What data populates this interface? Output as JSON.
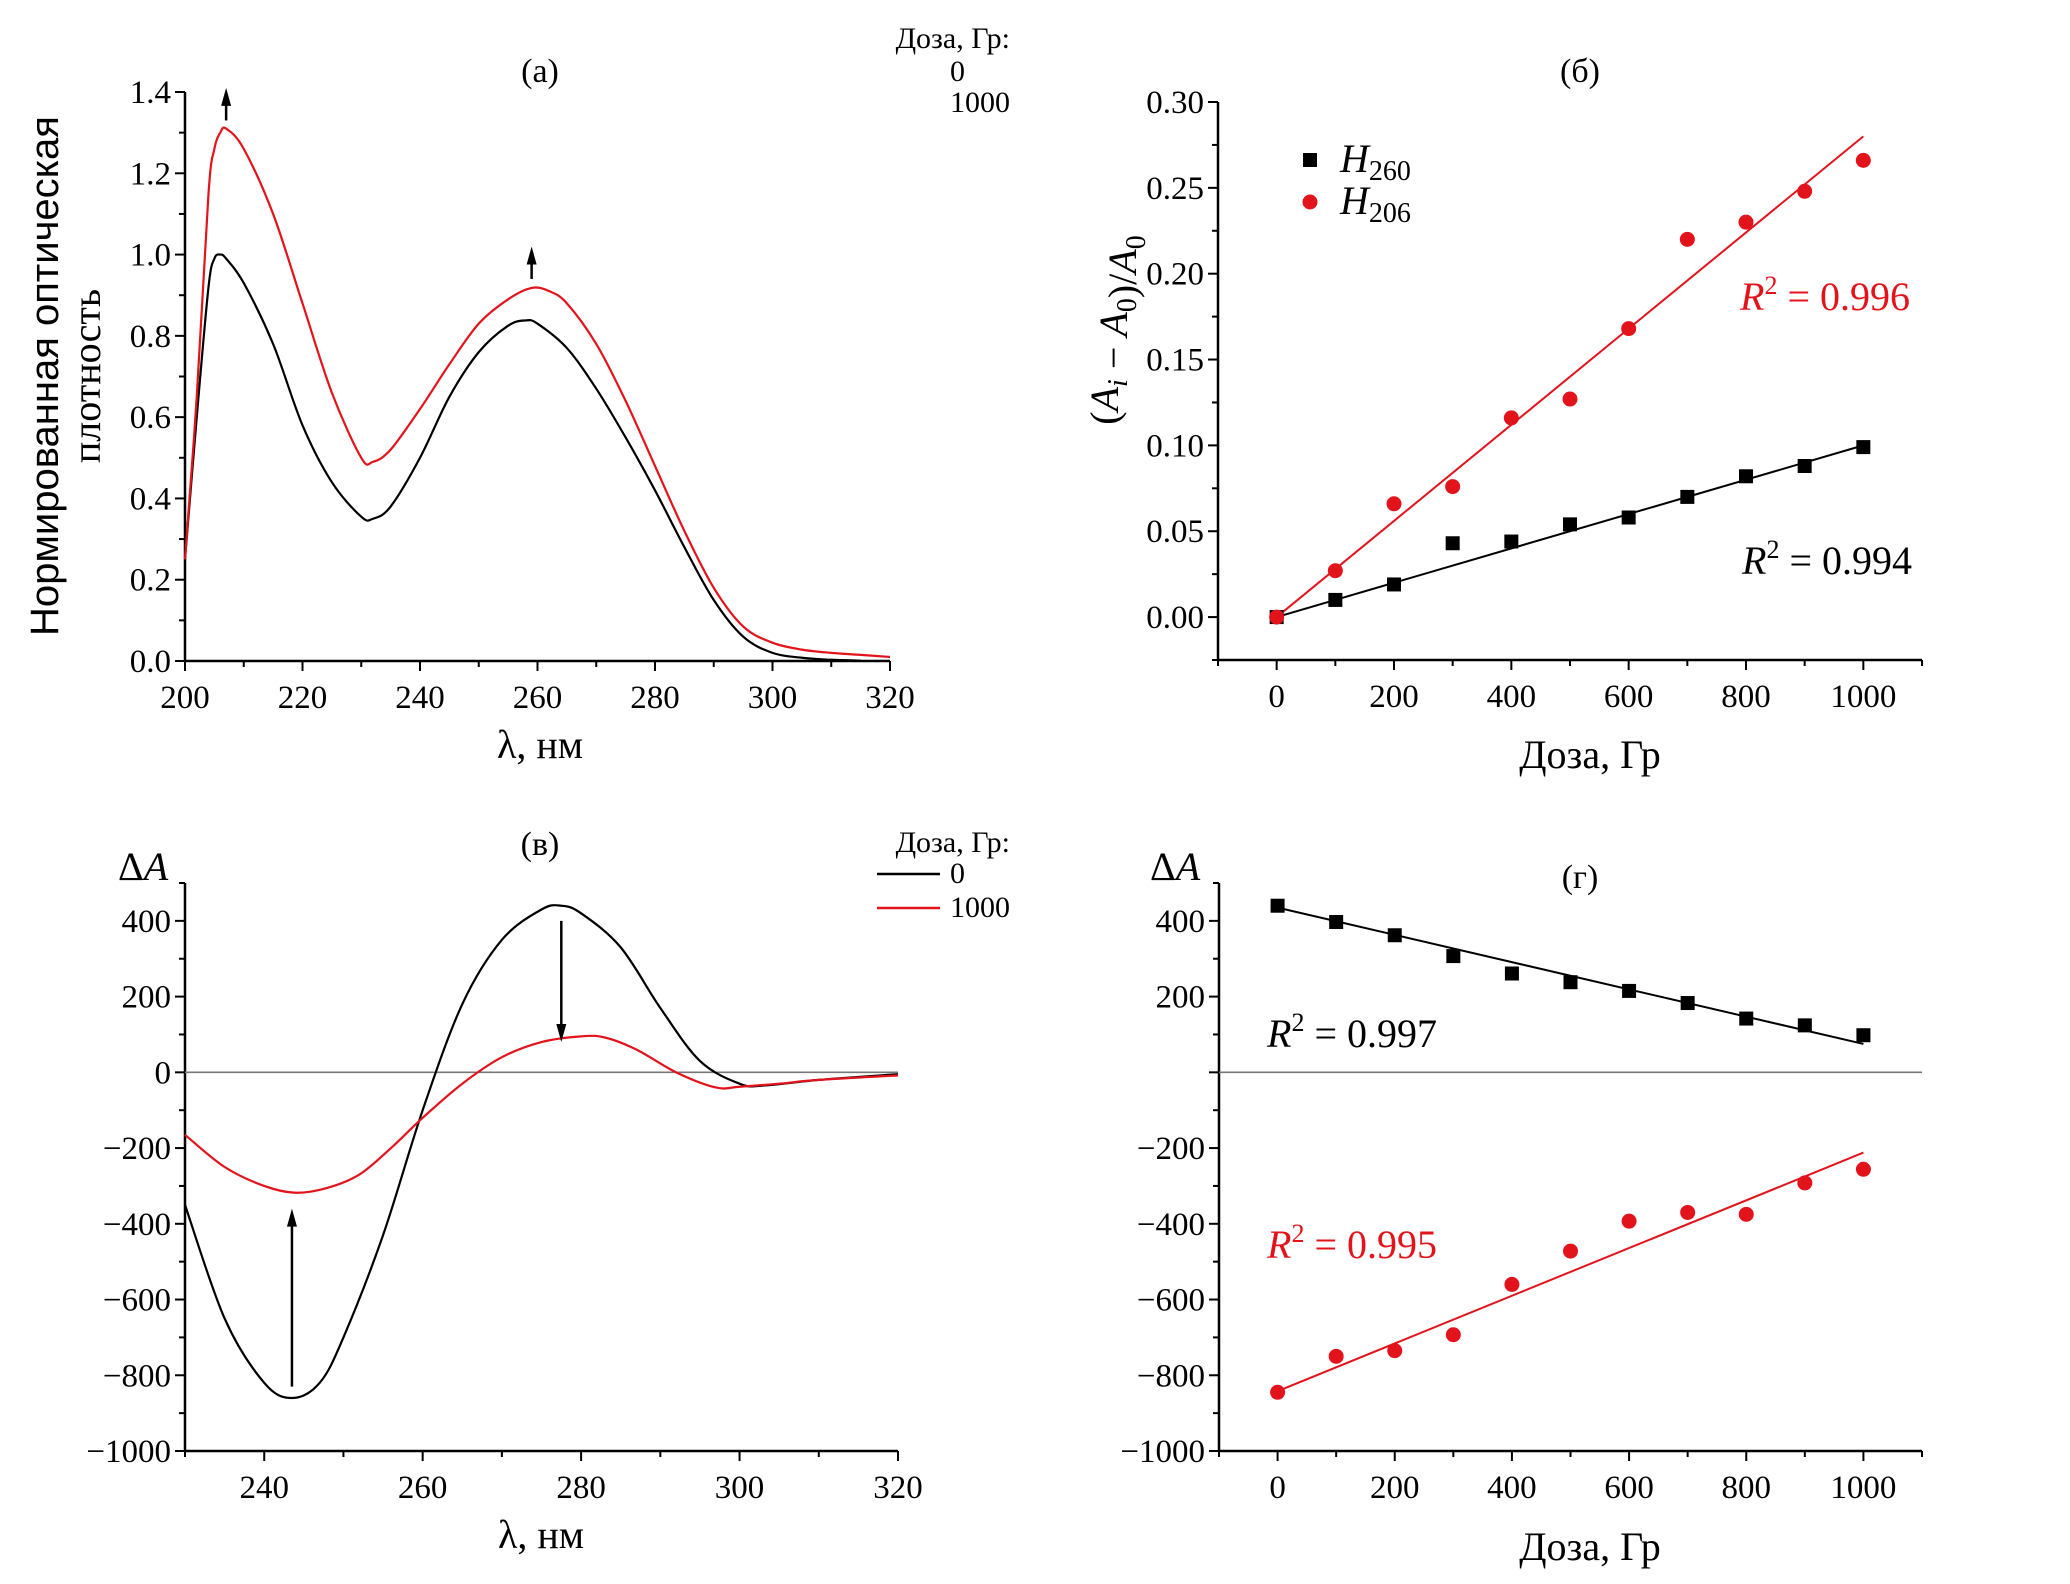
{
  "colors": {
    "dose0": "#000000",
    "dose1000": "#e3131b",
    "zero_line": "#777777"
  },
  "chart_data": [
    {
      "id": "a",
      "type": "line",
      "title": "(а)",
      "xlabel": "λ, нм",
      "ylabel_lines": [
        "Нормированная оптическая",
        "плотность"
      ],
      "xlim": [
        200,
        320
      ],
      "ylim": [
        0.0,
        1.4
      ],
      "xticks": [
        200,
        220,
        240,
        260,
        280,
        300,
        320
      ],
      "xtick_labels": [
        "200",
        "220",
        "240",
        "260",
        "280",
        "300",
        "320"
      ],
      "yticks": [
        0.0,
        0.2,
        0.4,
        0.6,
        0.8,
        1.0,
        1.2,
        1.4
      ],
      "ytick_labels": [
        "0.0",
        "0.2",
        "0.4",
        "0.6",
        "0.8",
        "1.0",
        "1.2",
        "1.4"
      ],
      "legend": {
        "title": "Доза, Гр:",
        "entries": [
          "0",
          "1000"
        ],
        "placement": "top-right",
        "has_line_samples": false
      },
      "annotations": [
        {
          "type": "arrow-up",
          "x": 207,
          "y_from": 1.33,
          "y_to": 1.41
        },
        {
          "type": "arrow-up",
          "x": 259,
          "y_from": 0.94,
          "y_to": 1.02
        }
      ],
      "series": [
        {
          "name": "0",
          "color_key": "dose0",
          "x": [
            200,
            202,
            204,
            205,
            206,
            207,
            210,
            215,
            220,
            225,
            230,
            232,
            235,
            240,
            245,
            250,
            255,
            258,
            260,
            265,
            270,
            275,
            280,
            285,
            290,
            295,
            300,
            305,
            310,
            315
          ],
          "y": [
            0.25,
            0.6,
            0.92,
            0.99,
            1.0,
            0.99,
            0.93,
            0.78,
            0.58,
            0.44,
            0.355,
            0.35,
            0.38,
            0.5,
            0.65,
            0.76,
            0.825,
            0.838,
            0.83,
            0.77,
            0.67,
            0.55,
            0.42,
            0.28,
            0.15,
            0.06,
            0.02,
            0.008,
            0.003,
            0.001
          ]
        },
        {
          "name": "1000",
          "color_key": "dose1000",
          "x": [
            200,
            202,
            204,
            205,
            206,
            207,
            210,
            215,
            220,
            225,
            230,
            232,
            235,
            240,
            245,
            250,
            255,
            259,
            262,
            265,
            270,
            275,
            280,
            285,
            290,
            295,
            300,
            305,
            310,
            315,
            320
          ],
          "y": [
            0.25,
            0.65,
            1.15,
            1.26,
            1.3,
            1.31,
            1.26,
            1.1,
            0.88,
            0.66,
            0.5,
            0.49,
            0.52,
            0.62,
            0.73,
            0.83,
            0.89,
            0.918,
            0.91,
            0.88,
            0.78,
            0.64,
            0.48,
            0.32,
            0.18,
            0.085,
            0.045,
            0.028,
            0.02,
            0.015,
            0.01
          ]
        }
      ]
    },
    {
      "id": "b",
      "type": "scatter",
      "title": "(б)",
      "xlabel": "Доза, Гр",
      "ylabel": "(A_i − A_0)/A_0",
      "xlim": [
        -100,
        1100
      ],
      "ylim": [
        -0.025,
        0.3
      ],
      "xticks": [
        0,
        200,
        400,
        600,
        800,
        1000
      ],
      "xtick_labels": [
        "0",
        "200",
        "400",
        "600",
        "800",
        "1000"
      ],
      "yticks": [
        0.0,
        0.05,
        0.1,
        0.15,
        0.2,
        0.25,
        0.3
      ],
      "ytick_labels": [
        "0.00",
        "0.05",
        "0.10",
        "0.15",
        "0.20",
        "0.25",
        "0.30"
      ],
      "legend": {
        "placement": "top-left",
        "entries": [
          {
            "symbol": "square",
            "base": "H",
            "sub": "260",
            "color_key": "dose0"
          },
          {
            "symbol": "circle",
            "base": "H",
            "sub": "206",
            "color_key": "dose1000"
          }
        ]
      },
      "series": [
        {
          "name": "H260",
          "marker": "square",
          "color_key": "dose0",
          "x": [
            0,
            100,
            200,
            300,
            400,
            500,
            600,
            700,
            800,
            900,
            1000
          ],
          "y": [
            0.0,
            0.01,
            0.019,
            0.043,
            0.044,
            0.054,
            0.058,
            0.07,
            0.082,
            0.088,
            0.099
          ],
          "fit": {
            "x": [
              0,
              1000
            ],
            "y": [
              0.0,
              0.1
            ]
          },
          "r2_label": {
            "prefix": "R",
            "sup": "2",
            "text": " = 0.994"
          }
        },
        {
          "name": "H206",
          "marker": "circle",
          "color_key": "dose1000",
          "x": [
            0,
            100,
            200,
            300,
            400,
            500,
            600,
            700,
            800,
            900,
            1000
          ],
          "y": [
            0.0,
            0.027,
            0.066,
            0.076,
            0.116,
            0.127,
            0.168,
            0.22,
            0.23,
            0.248,
            0.266
          ],
          "fit": {
            "x": [
              0,
              1000
            ],
            "y": [
              0.0,
              0.28
            ]
          },
          "r2_label": {
            "prefix": "R",
            "sup": "2",
            "text": " = 0.996"
          }
        }
      ]
    },
    {
      "id": "v",
      "type": "line",
      "title": "(в)",
      "xlabel": "λ, нм",
      "ylabel": "ΔA",
      "xlim": [
        230,
        320
      ],
      "ylim": [
        -1000,
        500
      ],
      "xticks": [
        240,
        260,
        280,
        300,
        320
      ],
      "xtick_labels": [
        "240",
        "260",
        "280",
        "300",
        "320"
      ],
      "yticks": [
        -1000,
        -800,
        -600,
        -400,
        -200,
        0,
        200,
        400
      ],
      "ytick_labels": [
        "−1000",
        "−800",
        "−600",
        "−400",
        "−200",
        "0",
        "200",
        "400"
      ],
      "zero_line": true,
      "legend": {
        "title": "Доза, Гр:",
        "entries": [
          "0",
          "1000"
        ],
        "placement": "top-right",
        "has_line_samples": true
      },
      "annotations": [
        {
          "type": "arrow-down",
          "x": 277.5,
          "y_from": 400,
          "y_to": 80
        },
        {
          "type": "arrow-up",
          "x": 243.5,
          "y_from": -830,
          "y_to": -360
        }
      ],
      "series": [
        {
          "name": "0",
          "color_key": "dose0",
          "x": [
            230,
            235,
            240,
            243.5,
            247,
            250,
            255,
            260,
            265,
            270,
            275,
            277.5,
            280,
            285,
            290,
            295,
            300,
            303,
            310,
            320
          ],
          "y": [
            -350,
            -650,
            -820,
            -860,
            -820,
            -700,
            -430,
            -100,
            180,
            350,
            430,
            440,
            420,
            330,
            170,
            30,
            -30,
            -35,
            -20,
            -5
          ]
        },
        {
          "name": "1000",
          "color_key": "dose1000",
          "x": [
            230,
            235,
            240,
            244,
            248,
            252,
            256,
            260,
            265,
            270,
            275,
            280,
            283,
            287,
            292,
            297,
            300,
            305,
            310,
            320
          ],
          "y": [
            -165,
            -250,
            -300,
            -318,
            -305,
            -270,
            -200,
            -120,
            -30,
            40,
            80,
            95,
            92,
            60,
            0,
            -40,
            -38,
            -30,
            -20,
            -8
          ]
        }
      ]
    },
    {
      "id": "g",
      "type": "scatter",
      "title": "(г)",
      "xlabel": "Доза, Гр",
      "ylabel": "ΔA",
      "xlim": [
        -100,
        1100
      ],
      "ylim": [
        -1000,
        500
      ],
      "xticks": [
        0,
        200,
        400,
        600,
        800,
        1000
      ],
      "xtick_labels": [
        "0",
        "200",
        "400",
        "600",
        "800",
        "1000"
      ],
      "yticks": [
        -1000,
        -800,
        -600,
        -400,
        -200,
        200,
        400
      ],
      "ytick_labels": [
        "−1000",
        "−800",
        "−600",
        "−400",
        "−200",
        "200",
        "400"
      ],
      "zero_line": true,
      "series": [
        {
          "name": "H260",
          "marker": "square",
          "color_key": "dose0",
          "x": [
            0,
            100,
            200,
            300,
            400,
            500,
            600,
            700,
            800,
            900,
            1000
          ],
          "y": [
            440,
            397,
            362,
            307,
            261,
            238,
            215,
            183,
            142,
            124,
            98
          ],
          "fit": {
            "x": [
              0,
              1000
            ],
            "y": [
              435,
              75
            ]
          },
          "r2_label": {
            "prefix": "R",
            "sup": "2",
            "text": " = 0.997"
          }
        },
        {
          "name": "H206",
          "marker": "circle",
          "color_key": "dose1000",
          "x": [
            0,
            100,
            200,
            300,
            400,
            500,
            600,
            700,
            800,
            900,
            1000
          ],
          "y": [
            -845,
            -750,
            -735,
            -693,
            -560,
            -472,
            -393,
            -370,
            -375,
            -292,
            -256
          ],
          "fit": {
            "x": [
              0,
              1000
            ],
            "y": [
              -842,
              -212
            ]
          },
          "r2_label": {
            "prefix": "R",
            "sup": "2",
            "text": " = 0.995"
          }
        }
      ]
    }
  ]
}
